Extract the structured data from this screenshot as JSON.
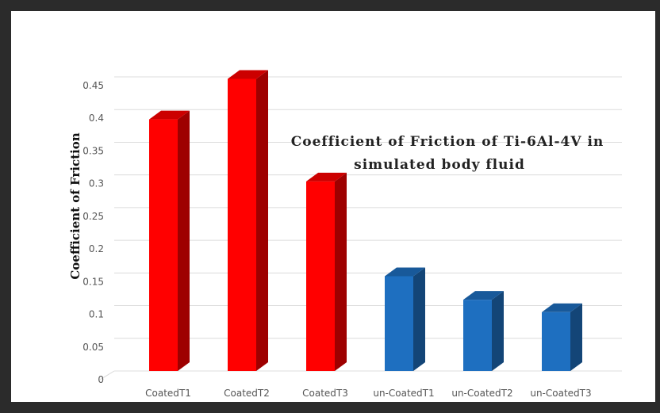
{
  "chart_data": {
    "type": "bar",
    "title_lines": [
      "Coefficient of Friction of Ti-6Al-4V in",
      "simulated body fluid"
    ],
    "xlabel": "",
    "ylabel": "Coefficient of Friction",
    "categories": [
      "CoatedT1",
      "CoatedT2",
      "CoatedT3",
      "un-CoatedT1",
      "un-CoatedT2",
      "un-CoatedT3"
    ],
    "values": [
      0.385,
      0.447,
      0.29,
      0.145,
      0.109,
      0.09
    ],
    "bar_colors": [
      "#ff0000",
      "#ff0000",
      "#ff0000",
      "#1e6fc0",
      "#1e6fc0",
      "#1e6fc0"
    ],
    "ylim": [
      0,
      0.45
    ],
    "yticks": [
      "0",
      "0.05",
      "0.1",
      "0.15",
      "0.2",
      "0.25",
      "0.3",
      "0.35",
      "0.4",
      "0.45"
    ],
    "grid": true,
    "style": "3d-column"
  }
}
